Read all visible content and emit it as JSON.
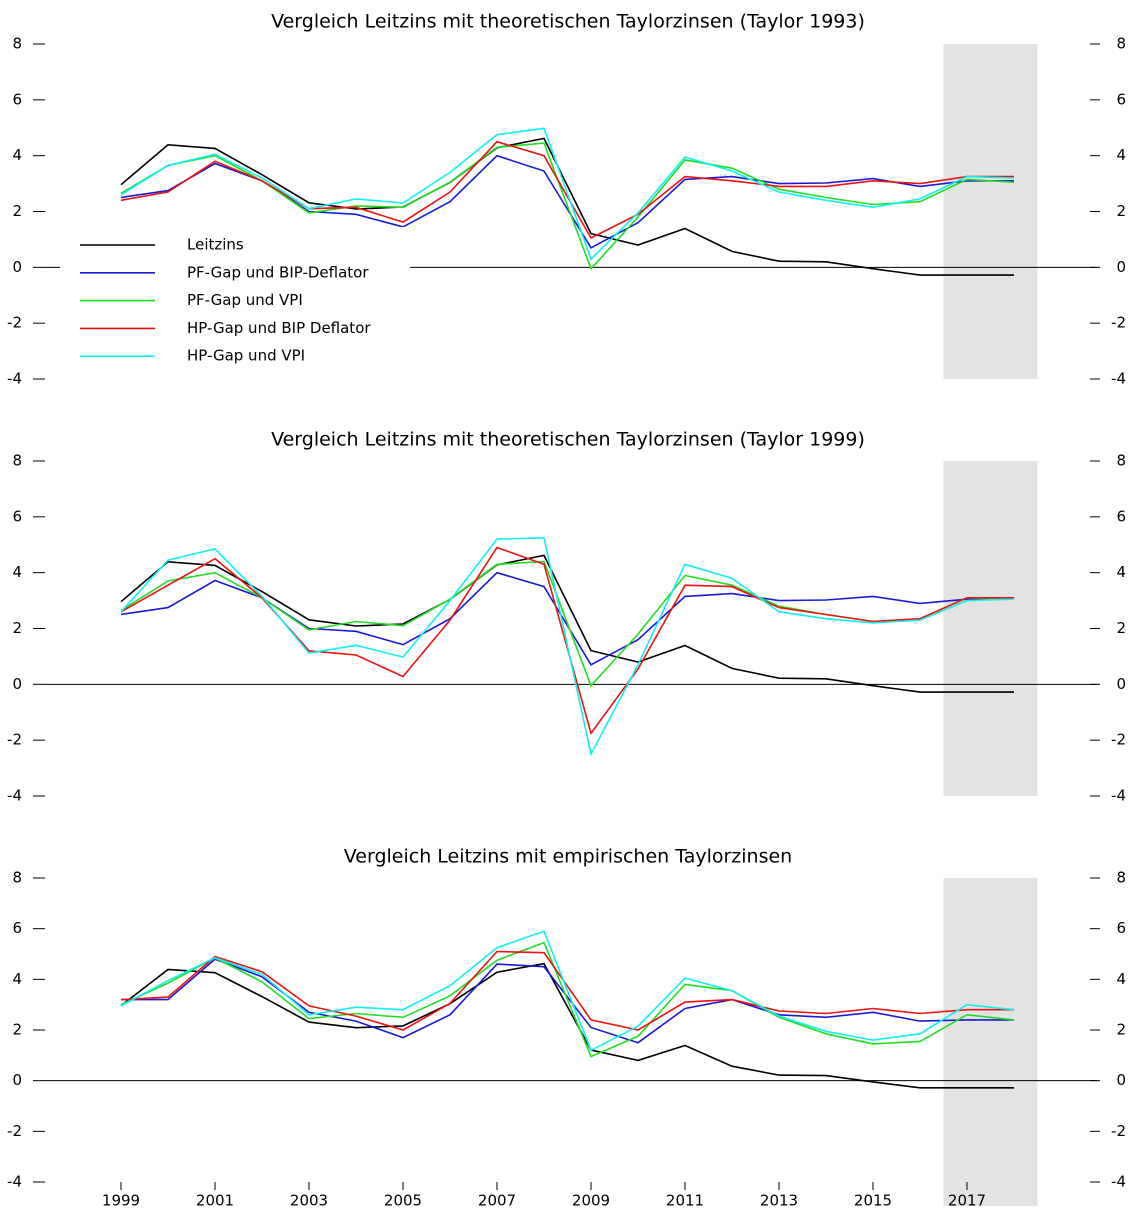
{
  "chart_data": [
    {
      "type": "line",
      "title": "Vergleich Leitzins mit theoretischen Taylorzinsen (Taylor 1993)",
      "x": [
        1999,
        2000,
        2001,
        2002,
        2003,
        2004,
        2005,
        2006,
        2007,
        2008,
        2009,
        2010,
        2011,
        2012,
        2013,
        2014,
        2015,
        2016,
        2017,
        2018
      ],
      "xlim": [
        1997.5,
        2019.5
      ],
      "ylim": [
        -4,
        8
      ],
      "yticks": [
        -4,
        -2,
        0,
        2,
        4,
        6,
        8
      ],
      "highlight_xlim": [
        2016.5,
        2018.5
      ],
      "zero_line": true,
      "legend": "upper left",
      "series": [
        {
          "name": "Leitzins",
          "color": "#000000",
          "values": [
            2.96,
            4.39,
            4.26,
            3.32,
            2.31,
            2.09,
            2.16,
            3.04,
            4.28,
            4.62,
            1.21,
            0.8,
            1.39,
            0.57,
            0.22,
            0.2,
            -0.05,
            -0.28,
            -0.28,
            -0.28
          ]
        },
        {
          "name": "PF-Gap und BIP-Deflator",
          "color": "#1a1ad6",
          "values": [
            2.5,
            2.75,
            3.72,
            3.1,
            2.0,
            1.9,
            1.45,
            2.35,
            4.0,
            3.45,
            0.7,
            1.6,
            3.15,
            3.25,
            3.0,
            3.02,
            3.18,
            2.9,
            3.1,
            3.1
          ]
        },
        {
          "name": "PF-Gap und VPI",
          "color": "#22dd22",
          "values": [
            2.65,
            3.65,
            4.0,
            3.1,
            1.95,
            2.2,
            2.15,
            3.05,
            4.3,
            4.45,
            -0.05,
            1.8,
            3.85,
            3.55,
            2.8,
            2.5,
            2.25,
            2.35,
            3.15,
            3.05
          ]
        },
        {
          "name": "HP-Gap und BIP Deflator",
          "color": "#ee1111",
          "values": [
            2.4,
            2.7,
            3.8,
            3.1,
            2.1,
            2.15,
            1.62,
            2.7,
            4.5,
            4.0,
            1.05,
            1.9,
            3.25,
            3.1,
            2.9,
            2.9,
            3.1,
            3.0,
            3.25,
            3.25
          ]
        },
        {
          "name": "HP-Gap und VPI",
          "color": "#11f0f0",
          "values": [
            2.6,
            3.65,
            4.05,
            3.2,
            2.1,
            2.45,
            2.3,
            3.4,
            4.75,
            4.98,
            0.3,
            1.95,
            3.95,
            3.45,
            2.7,
            2.4,
            2.15,
            2.45,
            3.25,
            3.2
          ]
        }
      ]
    },
    {
      "type": "line",
      "title": "Vergleich Leitzins mit theoretischen Taylorzinsen (Taylor 1999)",
      "x": [
        1999,
        2000,
        2001,
        2002,
        2003,
        2004,
        2005,
        2006,
        2007,
        2008,
        2009,
        2010,
        2011,
        2012,
        2013,
        2014,
        2015,
        2016,
        2017,
        2018
      ],
      "xlim": [
        1997.5,
        2019.5
      ],
      "ylim": [
        -4,
        8
      ],
      "yticks": [
        -4,
        -2,
        0,
        2,
        4,
        6,
        8
      ],
      "highlight_xlim": [
        2016.5,
        2018.5
      ],
      "zero_line": true,
      "series": [
        {
          "color": "#000000",
          "values": [
            2.96,
            4.39,
            4.26,
            3.32,
            2.31,
            2.09,
            2.16,
            3.04,
            4.28,
            4.62,
            1.21,
            0.8,
            1.39,
            0.57,
            0.22,
            0.2,
            -0.05,
            -0.28,
            -0.28,
            -0.28
          ]
        },
        {
          "color": "#1a1ad6",
          "values": [
            2.5,
            2.75,
            3.72,
            3.1,
            2.0,
            1.9,
            1.42,
            2.35,
            4.0,
            3.5,
            0.7,
            1.6,
            3.15,
            3.25,
            3.0,
            3.02,
            3.15,
            2.9,
            3.05,
            3.1
          ]
        },
        {
          "color": "#22dd22",
          "values": [
            2.65,
            3.7,
            4.0,
            3.1,
            1.95,
            2.25,
            2.1,
            3.05,
            4.3,
            4.4,
            -0.05,
            1.8,
            3.9,
            3.55,
            2.8,
            2.5,
            2.25,
            2.35,
            3.1,
            3.05
          ]
        },
        {
          "color": "#ee1111",
          "values": [
            2.6,
            3.55,
            4.5,
            3.1,
            1.2,
            1.05,
            0.28,
            2.3,
            4.9,
            4.3,
            -1.75,
            0.55,
            3.55,
            3.5,
            2.75,
            2.5,
            2.25,
            2.35,
            3.1,
            3.1
          ]
        },
        {
          "color": "#11f0f0",
          "values": [
            2.6,
            4.45,
            4.85,
            3.15,
            1.12,
            1.4,
            0.98,
            3.0,
            5.2,
            5.25,
            -2.5,
            0.7,
            4.3,
            3.8,
            2.6,
            2.35,
            2.2,
            2.3,
            3.0,
            3.05
          ]
        }
      ]
    },
    {
      "type": "line",
      "title": "Vergleich Leitzins mit empirischen Taylorzinsen",
      "x": [
        1999,
        2000,
        2001,
        2002,
        2003,
        2004,
        2005,
        2006,
        2007,
        2008,
        2009,
        2010,
        2011,
        2012,
        2013,
        2014,
        2015,
        2016,
        2017,
        2018
      ],
      "xlim": [
        1997.5,
        2019.5
      ],
      "xticks": [
        1999,
        2001,
        2003,
        2005,
        2007,
        2009,
        2011,
        2013,
        2015,
        2017
      ],
      "ylim": [
        -4,
        8
      ],
      "yticks": [
        -4,
        -2,
        0,
        2,
        4,
        6,
        8
      ],
      "highlight_xlim": [
        2016.5,
        2018.5
      ],
      "zero_line": true,
      "series": [
        {
          "color": "#000000",
          "values": [
            2.96,
            4.39,
            4.26,
            3.32,
            2.31,
            2.09,
            2.16,
            3.04,
            4.28,
            4.62,
            1.21,
            0.8,
            1.39,
            0.57,
            0.22,
            0.2,
            -0.05,
            -0.28,
            -0.28,
            -0.28
          ]
        },
        {
          "color": "#1a1ad6",
          "values": [
            3.2,
            3.2,
            4.8,
            4.1,
            2.7,
            2.35,
            1.7,
            2.6,
            4.6,
            4.5,
            2.1,
            1.5,
            2.85,
            3.2,
            2.6,
            2.5,
            2.7,
            2.35,
            2.4,
            2.4
          ]
        },
        {
          "color": "#22dd22",
          "values": [
            3.0,
            3.85,
            4.85,
            3.9,
            2.45,
            2.65,
            2.5,
            3.35,
            4.75,
            5.45,
            0.95,
            1.75,
            3.8,
            3.55,
            2.5,
            1.85,
            1.45,
            1.55,
            2.6,
            2.4
          ]
        },
        {
          "color": "#ee1111",
          "values": [
            3.2,
            3.3,
            4.9,
            4.3,
            2.95,
            2.55,
            2.0,
            3.05,
            5.1,
            5.05,
            2.4,
            2.0,
            3.1,
            3.2,
            2.75,
            2.65,
            2.85,
            2.65,
            2.8,
            2.8
          ]
        },
        {
          "color": "#11f0f0",
          "values": [
            2.95,
            3.95,
            4.85,
            4.2,
            2.6,
            2.9,
            2.8,
            3.75,
            5.25,
            5.9,
            1.2,
            2.15,
            4.05,
            3.55,
            2.55,
            1.95,
            1.6,
            1.85,
            3.0,
            2.8
          ]
        }
      ]
    }
  ]
}
